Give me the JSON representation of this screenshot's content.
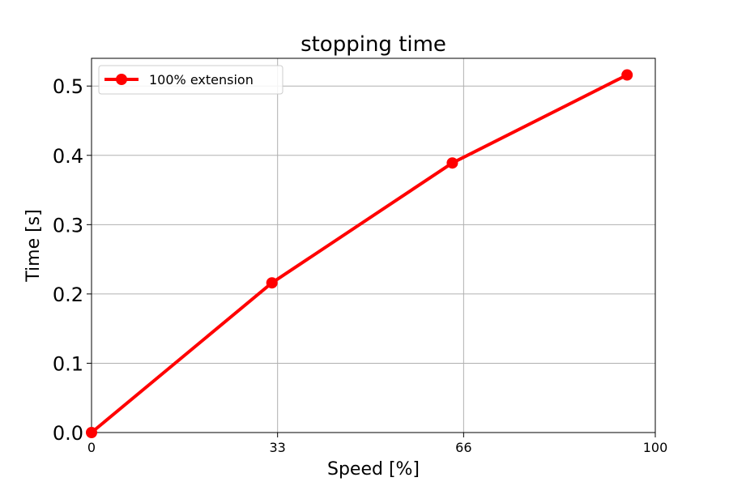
{
  "chart_data": {
    "type": "line",
    "title": "stopping time",
    "xlabel": "Speed [%]",
    "ylabel": "Time [s]",
    "xlim": [
      0,
      100
    ],
    "ylim": [
      0,
      0.54
    ],
    "xticks": [
      0,
      33,
      66,
      100
    ],
    "xtick_labels": [
      "0",
      "33",
      "66",
      "100"
    ],
    "yticks": [
      0.0,
      0.1,
      0.2,
      0.3,
      0.4,
      0.5
    ],
    "ytick_labels": [
      "0.0",
      "0.1",
      "0.2",
      "0.3",
      "0.4",
      "0.5"
    ],
    "grid": true,
    "legend_position": "top-left",
    "series": [
      {
        "name": "100% extension",
        "color": "#ff0000",
        "marker": "circle",
        "x": [
          0,
          32,
          64,
          95
        ],
        "y": [
          0.0,
          0.216,
          0.389,
          0.516
        ]
      }
    ]
  }
}
